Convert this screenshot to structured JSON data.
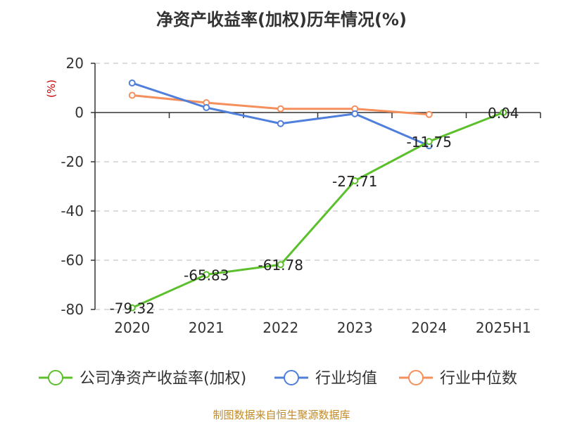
{
  "chart_data": {
    "type": "line",
    "title": "净资产收益率(加权)历年情况(%)",
    "ylabel": "(%)",
    "categories": [
      "2020",
      "2021",
      "2022",
      "2023",
      "2024",
      "2025H1"
    ],
    "ylim": [
      -80,
      20
    ],
    "yticks": [
      20,
      0,
      -20,
      -40,
      -60,
      -80
    ],
    "grid": true,
    "legend_position": "bottom",
    "series": [
      {
        "name": "公司净资产收益率(加权)",
        "color": "#5cc02c",
        "values": [
          -79.32,
          -65.83,
          -61.78,
          -27.71,
          -11.75,
          0.04
        ],
        "labels": [
          "-79.32",
          "-65.83",
          "-61.78",
          "-27.71",
          "-11.75",
          "0.04"
        ]
      },
      {
        "name": "行业均值",
        "color": "#4f7fdb",
        "values": [
          12,
          2,
          -4.5,
          -0.5,
          -13.5,
          null
        ]
      },
      {
        "name": "行业中位数",
        "color": "#f58f5c",
        "values": [
          7,
          4,
          1.5,
          1.5,
          -0.8,
          null
        ]
      }
    ]
  },
  "footer": {
    "source": "制图数据来自恒生聚源数据库"
  }
}
